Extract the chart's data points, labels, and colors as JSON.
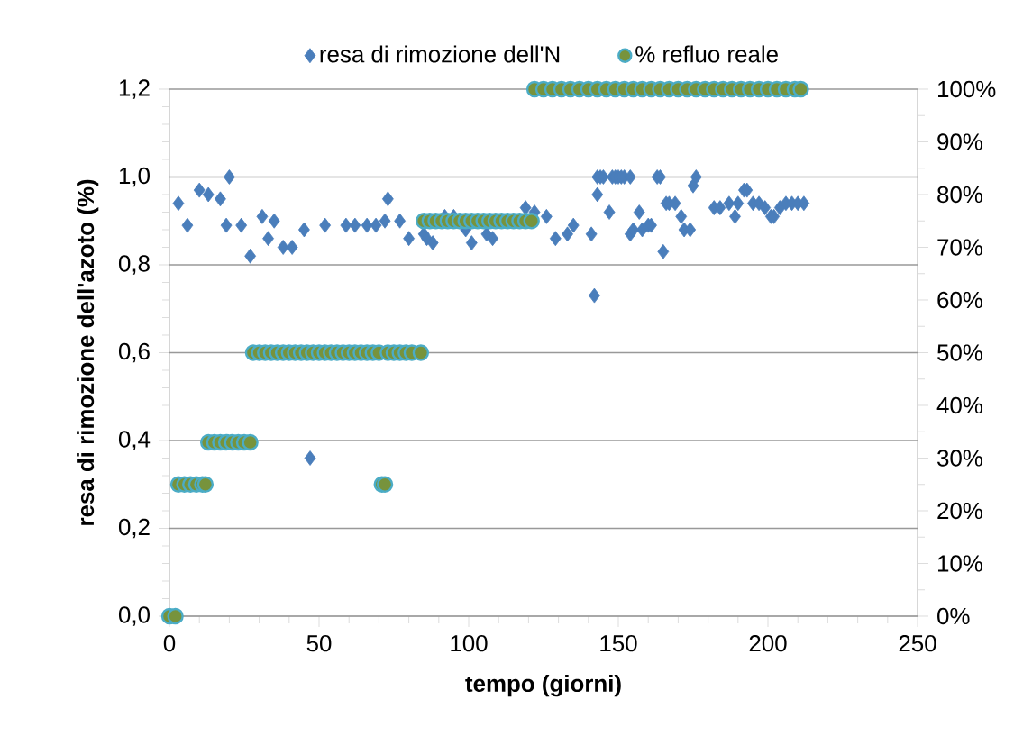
{
  "chart_data": {
    "type": "scatter",
    "xlabel": "tempo (giorni)",
    "ylabel": "resa di rimozione dell'azoto (%)",
    "xlim": [
      0,
      250
    ],
    "xticks": [
      0,
      50,
      100,
      150,
      200,
      250
    ],
    "ylim": [
      0,
      1.2
    ],
    "yticks": [
      {
        "value": 0,
        "label": "0,0"
      },
      {
        "value": 0.2,
        "label": "0,2"
      },
      {
        "value": 0.4,
        "label": "0,4"
      },
      {
        "value": 0.6,
        "label": "0,6"
      },
      {
        "value": 0.8,
        "label": "0,8"
      },
      {
        "value": 1.0,
        "label": "1,0"
      },
      {
        "value": 1.2,
        "label": "1,2"
      }
    ],
    "y2lim": [
      0,
      100
    ],
    "y2ticks": [
      {
        "value": 0,
        "label": "0%"
      },
      {
        "value": 10,
        "label": "10%"
      },
      {
        "value": 20,
        "label": "20%"
      },
      {
        "value": 30,
        "label": "30%"
      },
      {
        "value": 40,
        "label": "40%"
      },
      {
        "value": 50,
        "label": "50%"
      },
      {
        "value": 60,
        "label": "60%"
      },
      {
        "value": 70,
        "label": "70%"
      },
      {
        "value": 80,
        "label": "80%"
      },
      {
        "value": 90,
        "label": "90%"
      },
      {
        "value": 100,
        "label": "100%"
      }
    ],
    "grid": "y",
    "legend": "top",
    "series": [
      {
        "name": "resa di rimozione dell'N",
        "color": "#4a7ebb",
        "marker": "diamond",
        "x": [
          3,
          6,
          10,
          13,
          17,
          19,
          20,
          24,
          27,
          31,
          33,
          35,
          38,
          41,
          45,
          47,
          52,
          59,
          62,
          66,
          69,
          72,
          73,
          77,
          80,
          85,
          86,
          88,
          92,
          95,
          99,
          101,
          106,
          108,
          119,
          122,
          126,
          129,
          133,
          135,
          141,
          142,
          143,
          143,
          144,
          145,
          147,
          148,
          149,
          150,
          151,
          152,
          154,
          154,
          155,
          157,
          158,
          160,
          161,
          163,
          164,
          165,
          166,
          167,
          169,
          171,
          172,
          174,
          175,
          176,
          182,
          184,
          187,
          189,
          190,
          192,
          193,
          195,
          197,
          199,
          201,
          202,
          204,
          206,
          208,
          210,
          212
        ],
        "values": [
          0.94,
          0.89,
          0.97,
          0.96,
          0.95,
          0.89,
          1.0,
          0.89,
          0.82,
          0.91,
          0.86,
          0.9,
          0.84,
          0.84,
          0.88,
          0.36,
          0.89,
          0.89,
          0.89,
          0.89,
          0.89,
          0.9,
          0.95,
          0.9,
          0.86,
          0.87,
          0.86,
          0.85,
          0.91,
          0.91,
          0.88,
          0.85,
          0.87,
          0.86,
          0.93,
          0.92,
          0.91,
          0.86,
          0.87,
          0.89,
          0.87,
          0.73,
          0.96,
          1.0,
          1.0,
          1.0,
          0.92,
          1.0,
          1.0,
          1.0,
          1.0,
          1.0,
          0.87,
          1.0,
          0.88,
          0.92,
          0.88,
          0.89,
          0.89,
          1.0,
          1.0,
          0.83,
          0.94,
          0.94,
          0.94,
          0.91,
          0.88,
          0.88,
          0.98,
          1.0,
          0.93,
          0.93,
          0.94,
          0.91,
          0.94,
          0.97,
          0.97,
          0.94,
          0.94,
          0.93,
          0.91,
          0.91,
          0.93,
          0.94,
          0.94,
          0.94,
          0.94
        ]
      },
      {
        "name": "% refluo reale",
        "color": "#77933c",
        "marker": "circle",
        "axis": "y2",
        "x": [
          0,
          2,
          3,
          5,
          7,
          9,
          11,
          12,
          13,
          15,
          17,
          19,
          21,
          23,
          25,
          27,
          28,
          30,
          32,
          34,
          36,
          38,
          40,
          42,
          44,
          46,
          48,
          50,
          52,
          54,
          56,
          58,
          60,
          62,
          64,
          66,
          68,
          70,
          71,
          72,
          73,
          75,
          77,
          79,
          81,
          84,
          85,
          87,
          89,
          91,
          93,
          95,
          97,
          99,
          101,
          103,
          105,
          107,
          109,
          111,
          113,
          115,
          117,
          119,
          121,
          122,
          125,
          128,
          131,
          134,
          137,
          140,
          143,
          146,
          149,
          152,
          155,
          158,
          161,
          164,
          167,
          170,
          173,
          176,
          179,
          182,
          185,
          188,
          191,
          194,
          197,
          200,
          203,
          206,
          209,
          211
        ],
        "values": [
          0,
          0,
          25,
          25,
          25,
          25,
          25,
          25,
          33,
          33,
          33,
          33,
          33,
          33,
          33,
          33,
          50,
          50,
          50,
          50,
          50,
          50,
          50,
          50,
          50,
          50,
          50,
          50,
          50,
          50,
          50,
          50,
          50,
          50,
          50,
          50,
          50,
          50,
          25,
          25,
          50,
          50,
          50,
          50,
          50,
          50,
          75,
          75,
          75,
          75,
          75,
          75,
          75,
          75,
          75,
          75,
          75,
          75,
          75,
          75,
          75,
          75,
          75,
          75,
          75,
          100,
          100,
          100,
          100,
          100,
          100,
          100,
          100,
          100,
          100,
          100,
          100,
          100,
          100,
          100,
          100,
          100,
          100,
          100,
          100,
          100,
          100,
          100,
          100,
          100,
          100,
          100,
          100,
          100,
          100,
          100
        ]
      }
    ]
  }
}
